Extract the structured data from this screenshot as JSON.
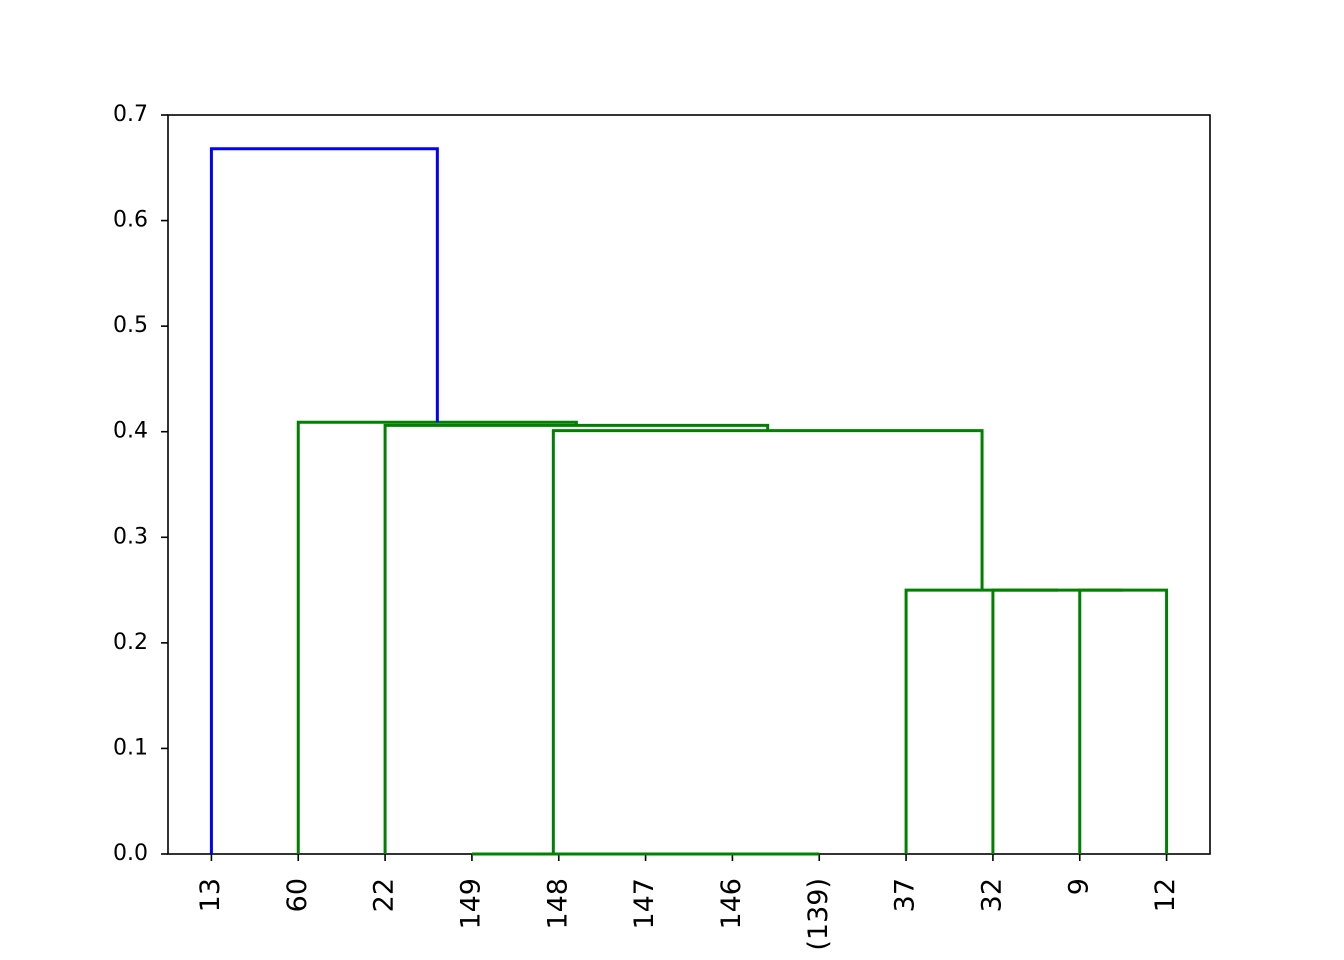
{
  "chart_data": {
    "type": "dendrogram",
    "categories": [
      "13",
      "60",
      "22",
      "149",
      "148",
      "147",
      "146",
      "(139)",
      "37",
      "32",
      "9",
      "12"
    ],
    "links": [
      {
        "color": "#008000",
        "x": [
          6,
          6,
          7,
          7
        ],
        "y": [
          0,
          0,
          0,
          0
        ]
      },
      {
        "color": "#008000",
        "x": [
          5,
          5,
          6.5,
          6.5
        ],
        "y": [
          0,
          0,
          0,
          0
        ]
      },
      {
        "color": "#008000",
        "x": [
          4,
          4,
          5.75,
          5.75
        ],
        "y": [
          0,
          0,
          0,
          0
        ]
      },
      {
        "color": "#008000",
        "x": [
          3,
          3,
          4.875,
          4.875
        ],
        "y": [
          0,
          0,
          0,
          0
        ]
      },
      {
        "color": "#008000",
        "x": [
          10,
          10,
          11,
          11
        ],
        "y": [
          0,
          0.25,
          0.25,
          0
        ]
      },
      {
        "color": "#008000",
        "x": [
          9,
          9,
          10.5,
          10.5
        ],
        "y": [
          0,
          0.25,
          0.25,
          0.25
        ]
      },
      {
        "color": "#008000",
        "x": [
          8,
          8,
          9.75,
          9.75
        ],
        "y": [
          0,
          0.25,
          0.25,
          0.25
        ]
      },
      {
        "color": "#008000",
        "x": [
          3.9375,
          3.9375,
          8.875,
          8.875
        ],
        "y": [
          0,
          0.401,
          0.401,
          0.25
        ]
      },
      {
        "color": "#008000",
        "x": [
          2,
          2,
          6.406,
          6.406
        ],
        "y": [
          0,
          0.406,
          0.406,
          0.401
        ]
      },
      {
        "color": "#008000",
        "x": [
          1,
          1,
          4.203,
          4.203
        ],
        "y": [
          0,
          0.409,
          0.409,
          0.406
        ]
      },
      {
        "color": "#0000ff",
        "x": [
          0,
          0,
          2.602,
          2.602
        ],
        "y": [
          0,
          0.668,
          0.668,
          0.409
        ]
      }
    ],
    "xlim": [
      -0.5,
      11.5
    ],
    "ylim": [
      0,
      0.7
    ],
    "yticks": [
      {
        "value": 0,
        "label": "0.0"
      },
      0.1,
      0.2,
      0.3,
      0.4,
      0.5,
      0.6,
      0.7
    ]
  }
}
